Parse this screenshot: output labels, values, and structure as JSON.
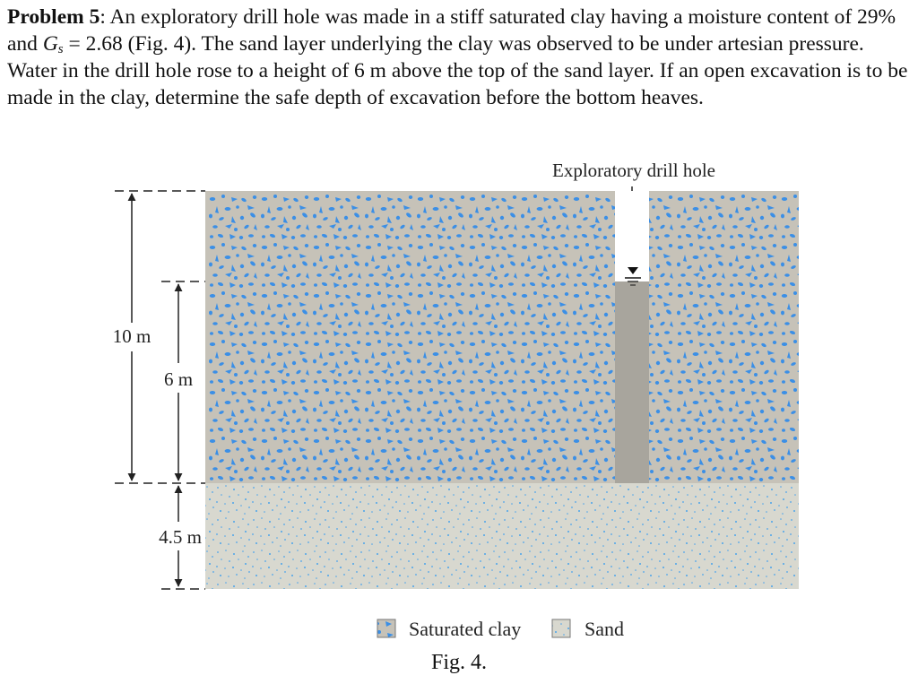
{
  "problem": {
    "label": "Problem 5",
    "text_1": ": An exploratory drill hole was made in a stiff saturated clay having a moisture content of 29% and ",
    "gs_symbol": "G",
    "gs_subscript": "s",
    "text_2": " = 2.68 (Fig. 4). The sand layer underlying the clay was observed to be under artesian pressure. Water in the drill hole rose to a height of 6 m above the top of the sand layer. If an open excavation is to be made in the clay, determine the safe depth of excavation before the bottom heaves."
  },
  "figure": {
    "drill_hole_label": "Exploratory drill hole",
    "dim_clay_thickness": "10 m",
    "dim_water_height": "6 m",
    "dim_sand_thickness": "4.5 m",
    "legend": {
      "clay_label": "Saturated clay",
      "sand_label": "Sand"
    },
    "caption": "Fig. 4.",
    "colors": {
      "clay_fill": "#c6c2b8",
      "clay_speckle": "#3b8fe6",
      "sand_fill": "#d8d8cf",
      "sand_speckle": "#4aa3ec",
      "water_column": "#a8a59d"
    }
  }
}
